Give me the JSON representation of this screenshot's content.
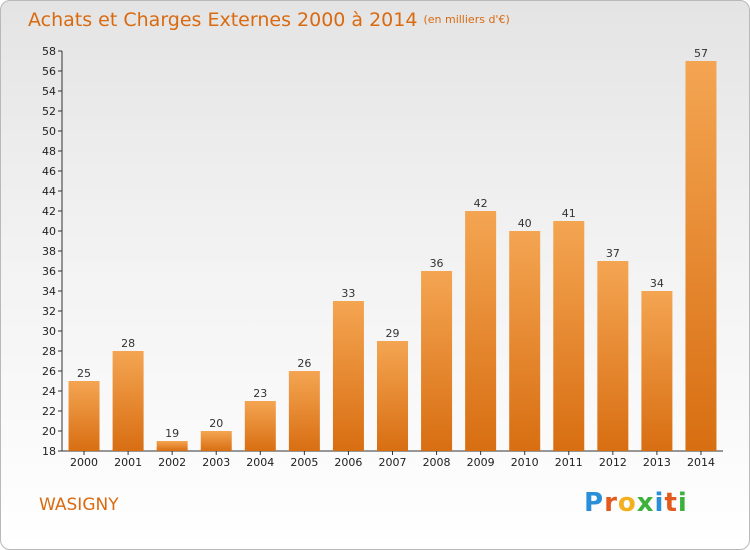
{
  "title": "Achats et Charges Externes 2000 à 2014",
  "unit_label": "(en milliers d'€)",
  "town": "WASIGNY",
  "brand": {
    "letters": [
      "P",
      "r",
      "o",
      "x",
      "i",
      "t",
      "i"
    ],
    "colors": [
      "#2a8fd8",
      "#e25a1c",
      "#f2b01e",
      "#3cb23c",
      "#2a8fd8",
      "#e25a1c",
      "#3cb23c"
    ]
  },
  "colors": {
    "bar_top": "#f4a552",
    "bar_bottom": "#d86e12",
    "title": "#d96a10"
  },
  "chart_data": {
    "type": "bar",
    "title": "Achats et Charges Externes 2000 à 2014",
    "subtitle": "(en milliers d'€)",
    "categories": [
      "2000",
      "2001",
      "2002",
      "2003",
      "2004",
      "2005",
      "2006",
      "2007",
      "2008",
      "2009",
      "2010",
      "2011",
      "2012",
      "2013",
      "2014"
    ],
    "values": [
      25,
      28,
      19,
      20,
      23,
      26,
      33,
      29,
      36,
      42,
      40,
      41,
      37,
      34,
      57
    ],
    "data_labels": [
      "25",
      "28",
      "19",
      "20",
      "23",
      "26",
      "33",
      "29",
      "36",
      "42",
      "40",
      "41",
      "37",
      "34",
      "57"
    ],
    "ylim": [
      18,
      58
    ],
    "yticks": [
      "18",
      "20",
      "22",
      "24",
      "26",
      "28",
      "30",
      "32",
      "34",
      "36",
      "38",
      "40",
      "42",
      "44",
      "46",
      "48",
      "50",
      "52",
      "54",
      "56",
      "58"
    ],
    "grid": false,
    "legend": "none"
  }
}
